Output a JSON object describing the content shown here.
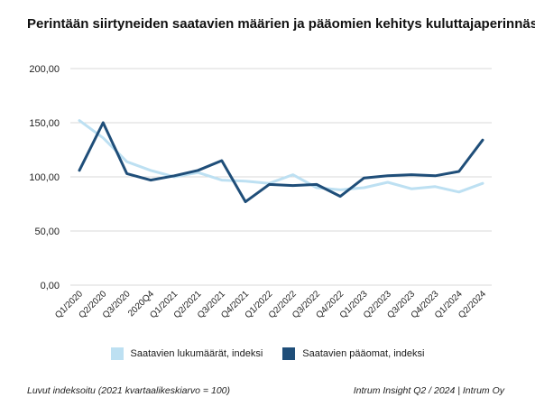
{
  "chart_data": {
    "type": "line",
    "title": "Perintään siirtyneiden saatavien määrien ja pääomien kehitys kuluttajaperinnässä",
    "categories": [
      "Q1/2020",
      "Q2/2020",
      "Q3/2020",
      "2020Q4",
      "Q1/2021",
      "Q2/2021",
      "Q3/2021",
      "Q4/2021",
      "Q1/2022",
      "Q2/2022",
      "Q3/2022",
      "Q4/2022",
      "Q1/2023",
      "Q2/2023",
      "Q3/2023",
      "Q4/2023",
      "Q1/2024",
      "Q2/2024"
    ],
    "series": [
      {
        "name": "Saatavien lukumäärät, indeksi",
        "color": "#bde0f2",
        "values": [
          152,
          136,
          114,
          106,
          100,
          104,
          97,
          96,
          94,
          102,
          90,
          88,
          90,
          95,
          89,
          91,
          86,
          94
        ]
      },
      {
        "name": "Saatavien pääomat, indeksi",
        "color": "#1f4e79",
        "values": [
          106,
          150,
          103,
          97,
          101,
          106,
          115,
          77,
          93,
          92,
          93,
          82,
          99,
          101,
          102,
          101,
          105,
          134
        ]
      }
    ],
    "ylim": [
      0,
      200
    ],
    "yticks": [
      "0,00",
      "50,00",
      "100,00",
      "150,00",
      "200,00"
    ],
    "grid": true,
    "legend_position": "bottom"
  },
  "footer": {
    "note": "Luvut indeksoitu (2021 kvartaalikeskiarvo = 100)",
    "source": "Intrum Insight Q2 / 2024 | Intrum Oy"
  }
}
